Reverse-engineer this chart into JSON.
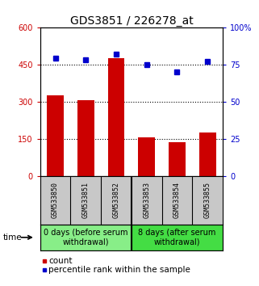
{
  "title": "GDS3851 / 226278_at",
  "samples": [
    "GSM533850",
    "GSM533851",
    "GSM533852",
    "GSM533853",
    "GSM533854",
    "GSM533855"
  ],
  "bar_values": [
    325,
    305,
    475,
    155,
    135,
    175
  ],
  "percentile_values": [
    79,
    78,
    82,
    75,
    70,
    77
  ],
  "bar_color": "#cc0000",
  "dot_color": "#0000cc",
  "ylim_left": [
    0,
    600
  ],
  "ylim_right": [
    0,
    100
  ],
  "yticks_left": [
    0,
    150,
    300,
    450,
    600
  ],
  "yticks_right": [
    0,
    25,
    50,
    75,
    100
  ],
  "ytick_labels_left": [
    "0",
    "150",
    "300",
    "450",
    "600"
  ],
  "ytick_labels_right": [
    "0",
    "25",
    "50",
    "75",
    "100%"
  ],
  "hgrid_vals": [
    150,
    300,
    450
  ],
  "groups": [
    {
      "label": "0 days (before serum\nwithdrawal)",
      "color": "#88ee88",
      "start": 0,
      "end": 3
    },
    {
      "label": "8 days (after serum\nwithdrawal)",
      "color": "#44dd44",
      "start": 3,
      "end": 6
    }
  ],
  "time_label": "time",
  "legend_count": "count",
  "legend_percentile": "percentile rank within the sample",
  "title_fontsize": 10,
  "tick_label_fontsize": 7,
  "bar_width": 0.55,
  "background_color": "#ffffff",
  "plot_bg": "#ffffff",
  "sample_label_fontsize": 6,
  "group_label_fontsize": 7,
  "label_area_bg": "#c8c8c8",
  "legend_fontsize": 7.5
}
